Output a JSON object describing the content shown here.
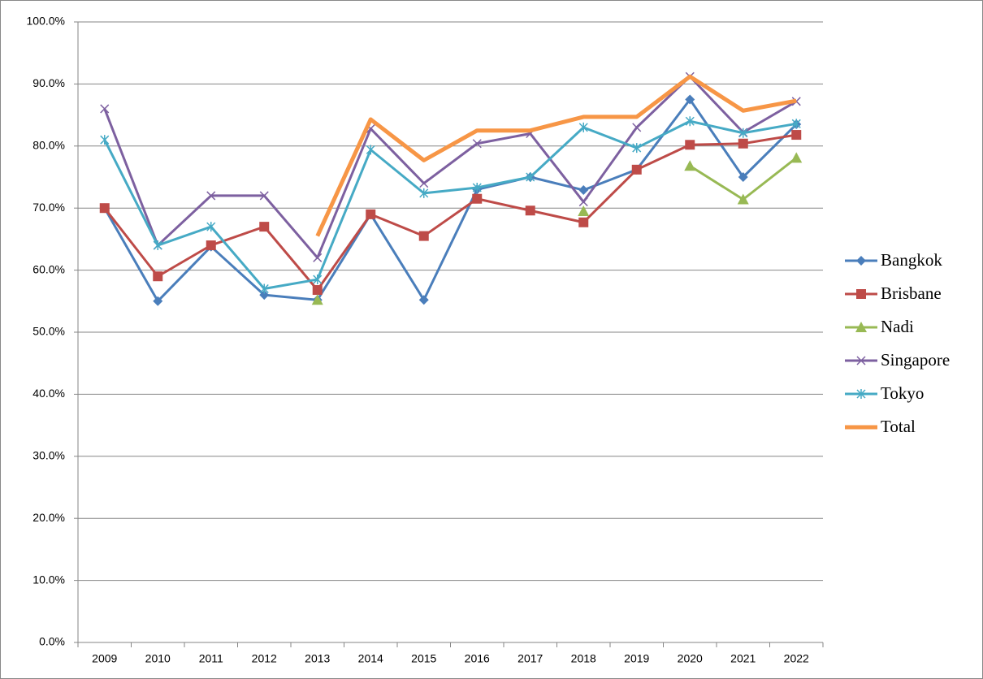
{
  "chart_data": {
    "type": "line",
    "categories": [
      "2009",
      "2010",
      "2011",
      "2012",
      "2013",
      "2014",
      "2015",
      "2016",
      "2017",
      "2018",
      "2019",
      "2020",
      "2021",
      "2022"
    ],
    "series": [
      {
        "name": "Bangkok",
        "color": "#4a7ebb",
        "marker": "diamond",
        "line_width": 3,
        "values": [
          70,
          55,
          63.8,
          56,
          55.2,
          69,
          55.2,
          73,
          75,
          72.9,
          76.2,
          87.5,
          75,
          83.5
        ]
      },
      {
        "name": "Brisbane",
        "color": "#be4b48",
        "marker": "square",
        "line_width": 3,
        "values": [
          70,
          59,
          64,
          67,
          56.8,
          69,
          65.5,
          71.5,
          69.6,
          67.7,
          76.2,
          80.2,
          80.4,
          81.8
        ]
      },
      {
        "name": "Nadi",
        "color": "#98b954",
        "marker": "triangle",
        "line_width": 3,
        "values": [
          null,
          null,
          null,
          null,
          55.2,
          null,
          null,
          null,
          null,
          69.5,
          null,
          76.8,
          71.4,
          78.1
        ]
      },
      {
        "name": "Singapore",
        "color": "#7d60a0",
        "marker": "x",
        "line_width": 3,
        "values": [
          86,
          64,
          72,
          72,
          62,
          82.8,
          74,
          80.4,
          82,
          71,
          83,
          91.2,
          82.2,
          87.2
        ]
      },
      {
        "name": "Tokyo",
        "color": "#46aac5",
        "marker": "asterisk",
        "line_width": 3,
        "values": [
          81,
          64,
          67,
          57,
          58.5,
          79.4,
          72.4,
          73.3,
          75,
          83,
          79.7,
          84,
          82.1,
          83.6
        ]
      },
      {
        "name": "Total",
        "color": "#f79646",
        "marker": "none",
        "line_width": 5,
        "values": [
          null,
          null,
          null,
          null,
          65.5,
          84.3,
          77.7,
          82.5,
          82.5,
          84.7,
          84.7,
          91.2,
          85.7,
          87.3
        ]
      }
    ],
    "ylim": [
      0,
      100
    ],
    "yticks": [
      {
        "value": 0,
        "label": "0.0%"
      },
      {
        "value": 10,
        "label": "10.0%"
      },
      {
        "value": 20,
        "label": "20.0%"
      },
      {
        "value": 30,
        "label": "30.0%"
      },
      {
        "value": 40,
        "label": "40.0%"
      },
      {
        "value": 50,
        "label": "50.0%"
      },
      {
        "value": 60,
        "label": "60.0%"
      },
      {
        "value": 70,
        "label": "70.0%"
      },
      {
        "value": 80,
        "label": "80.0%"
      },
      {
        "value": 90,
        "label": "90.0%"
      },
      {
        "value": 100,
        "label": "100.0%"
      }
    ],
    "grid": true,
    "legend": "right"
  }
}
